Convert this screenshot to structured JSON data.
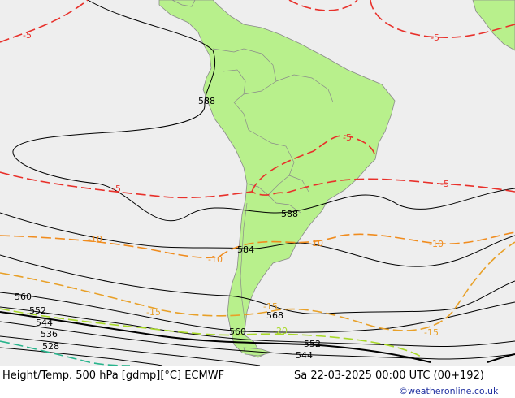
{
  "footer": {
    "left": "Height/Temp. 500 hPa [gdmp][°C] ECMWF",
    "right": "Sa 22-03-2025 00:00 UTC (00+192)",
    "credit": "©weatheronline.co.uk"
  },
  "colors": {
    "ocean": "#eeeeee",
    "land": "#b8f08c",
    "land_border": "#8a8a8a",
    "height_contour": "#000000",
    "temp_minus5": "#e8302a",
    "temp_minus10": "#f08c1e",
    "temp_minus15": "#e8a028",
    "temp_minus20": "#a8d828",
    "temp_minus25": "#28b48c"
  },
  "height_labels": [
    "588",
    "588",
    "584",
    "568",
    "560",
    "560",
    "552",
    "552",
    "544",
    "544",
    "536",
    "528"
  ],
  "temp_labels": [
    "-5",
    "-5",
    "-5",
    "-5",
    "-5",
    "-10",
    "-10",
    "-10",
    "-10",
    "-15",
    "-15",
    "-15",
    "-20"
  ]
}
